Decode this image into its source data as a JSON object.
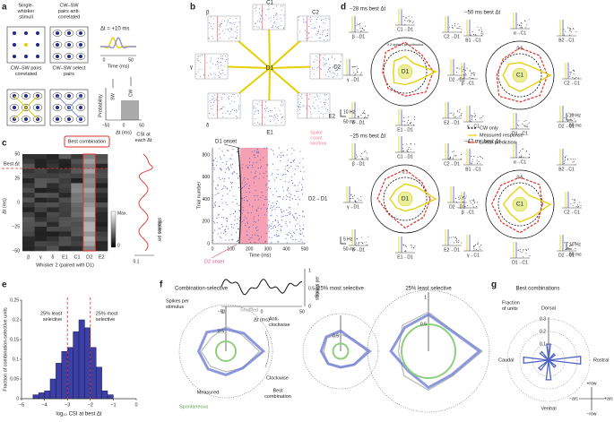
{
  "panels": [
    "a",
    "b",
    "c",
    "d",
    "e",
    "f",
    "g"
  ],
  "a": {
    "stimuli": [
      [
        "Single-",
        "whisker",
        "stimuli"
      ],
      [
        "CW–SW",
        "pairs anti-",
        "correlated"
      ],
      [
        "CW–SW pairs",
        "correlated"
      ],
      [
        "CW–SW select",
        "pairs"
      ]
    ],
    "delta": "Δt = +10 ms",
    "time_ticks": [
      "0",
      "50"
    ],
    "time_label": "Time (ms)",
    "prob_label": "Probability",
    "sw": "SW",
    "cw": "CW",
    "dt_ticks": [
      "−50",
      "0",
      "50"
    ],
    "dt_label": "Δt (ms)"
  },
  "b": {
    "whiskers": [
      "β",
      "C1",
      "C2",
      "γ",
      "D1",
      "D2",
      "δ",
      "E1",
      "E2"
    ],
    "onset": "D1 onset",
    "window": [
      "Spike",
      "count",
      "window"
    ],
    "trial_label": "Trial number",
    "trial_ticks": [
      "0",
      "200",
      "400",
      "600",
      "800"
    ],
    "time_ticks": [
      "0",
      "100",
      "200",
      "300",
      "400",
      "500"
    ],
    "time_label": "Time (ms)",
    "pair": "D2→D1",
    "d2_onset": "D2 onset",
    "spikes_label": [
      "Spikes per",
      "stimulus"
    ],
    "spike_ticks": [
      "0",
      "0.5",
      "1"
    ],
    "dt_ticks": [
      "−50",
      "0",
      "50"
    ],
    "dt_label": "Δt (ms)"
  },
  "c": {
    "best_combination": "Best combination",
    "best_dt": "Best Δt",
    "csi_label": [
      "CSI at",
      "each Δt"
    ],
    "y_label": "Δt (ms)",
    "y_ticks": [
      "50",
      "25",
      "0",
      "−25",
      "−50"
    ],
    "x_labels": [
      "β",
      "γ",
      "δ",
      "E1",
      "C1",
      "D2",
      "E2"
    ],
    "x_label": "Whisker 2 (paired with D1)",
    "colorbar": [
      "Max.",
      "0"
    ],
    "spikes_label": [
      "Spikes per",
      "stimulus"
    ],
    "csi_tick": "0.1"
  },
  "d": {
    "plots": [
      {
        "title": "−28 ms best Δt",
        "center": "D1",
        "ring": "0.2 spikes per stimulus",
        "neighbors": [
          "β→D1",
          "C1→D1",
          "C2→D1",
          "γ→D1",
          "D2→D1",
          "δ→D1",
          "E1→D1",
          "E2→D1"
        ],
        "scale": [
          "10 Hz",
          "50 ms"
        ]
      },
      {
        "title": "−50 ms best Δt",
        "center": "C1",
        "ring": "0.6",
        "neighbors": [
          "B1→C1",
          "α→C1",
          "B2→C1",
          "β→C1",
          "C2→C1",
          "γ→C1",
          "D1→C1",
          "D2→C1"
        ],
        "scale": [
          "10 Hz",
          "50 ms"
        ]
      },
      {
        "title": "−25 ms best Δt",
        "center": "D1",
        "ring": "0.1",
        "neighbors": [
          "β→D1",
          "C1→D1",
          "C2→D1",
          "γ→D1",
          "D2→D1",
          "δ→D1",
          "E1→D1",
          "E2→D1"
        ],
        "scale": [
          "5 Hz",
          "50 ms"
        ]
      },
      {
        "title": "−42 ms best Δt",
        "center": "C1",
        "ring": "0.5",
        "neighbors": [
          "B1→C1",
          "α→C1",
          "B2→C1",
          "β→C1",
          "C2→C1",
          "γ→C1",
          "D1→C1",
          "D2→C1"
        ],
        "scale": [
          "10 Hz",
          "50 ms"
        ]
      }
    ],
    "legend": [
      "CW only",
      "Measured response",
      "Linear prediction"
    ]
  },
  "chart_data": {
    "type": "histogram",
    "x_label": "log₁₀ CSI at best Δt",
    "y_label": "Fraction of combination-selective units",
    "bins": [
      -4.5,
      -4.25,
      -4,
      -3.75,
      -3.5,
      -3.25,
      -3,
      -2.75,
      -2.5,
      -2.25,
      -2,
      -1.75,
      -1.5,
      -1.25,
      -1
    ],
    "values": [
      0.01,
      0.015,
      0.02,
      0.05,
      0.09,
      0.12,
      0.13,
      0.17,
      0.2,
      0.18,
      0.13,
      0.08,
      0.02,
      0.01
    ],
    "xlim": [
      -5,
      0
    ],
    "xticks": [
      {
        "value": -5,
        "label": "−5"
      },
      {
        "value": -4,
        "label": "−4"
      },
      {
        "value": -3,
        "label": "−3"
      },
      {
        "value": -2,
        "label": "−2"
      },
      {
        "value": -1,
        "label": "−1"
      },
      0
    ],
    "ylim": [
      0,
      0.25
    ],
    "yticks": [
      0,
      0.05,
      0.1,
      0.15,
      0.2,
      0.25
    ],
    "color": "#3c3fa3",
    "line_color": "#e0302a",
    "annotations": [
      {
        "x": -3,
        "label": [
          "25% least",
          "selective"
        ]
      },
      {
        "x": -2,
        "label": [
          "25% most",
          "selective"
        ]
      }
    ]
  },
  "f": {
    "titles": [
      "Combination-selective",
      "25% most selective",
      "25% least selective"
    ],
    "spikes_label": [
      "Spikes per",
      "stimulus"
    ],
    "shuffled": "Shuffled",
    "anticlockwise": [
      "Anti-",
      "clockwise"
    ],
    "clockwise": "Clockwise",
    "best": [
      "Best",
      "combination"
    ],
    "measured": "Measured",
    "spontaneous": "Spontaneous",
    "ticks": [
      [
        "1",
        "0.5"
      ],
      [
        "0.5"
      ],
      [
        "1",
        "0.5"
      ]
    ]
  },
  "g": {
    "title": "Best combinations",
    "fraction": [
      "Fraction",
      "of units"
    ],
    "ticks": [
      "0.3",
      "0.2",
      "0.1"
    ],
    "directions": [
      "Dorsal",
      "Caudal",
      "Rostral",
      "Ventral"
    ],
    "axes": [
      "+row",
      "−row",
      "−arc",
      "+arc"
    ]
  }
}
